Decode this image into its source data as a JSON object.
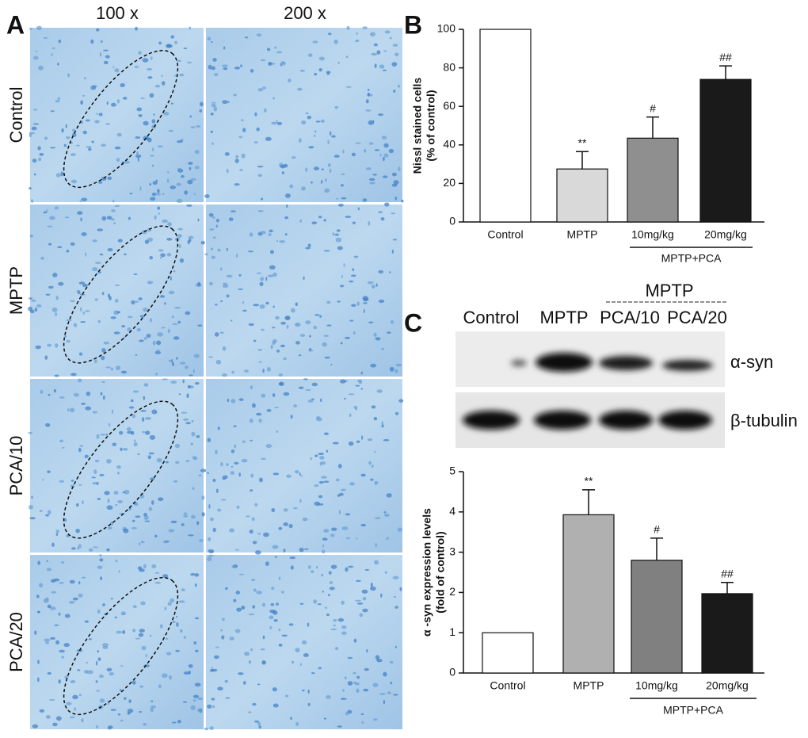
{
  "panel_a": {
    "panel_label": "A",
    "columns": [
      "100 x",
      "200 x"
    ],
    "rows": [
      "Control",
      "MPTP",
      "PCA/10",
      "PCA/20"
    ]
  },
  "blot": {
    "panel_label": "C",
    "group_label": "MPTP",
    "lanes": [
      "Control",
      "MPTP",
      "PCA/10",
      "PCA/20"
    ],
    "rows": [
      "α-syn",
      "β-tubulin"
    ]
  },
  "chart_data": [
    {
      "type": "bar",
      "panel_label": "B",
      "y_label": [
        "Nissl stained cells",
        "(% of control)"
      ],
      "categories": [
        "Control",
        "MPTP",
        "10mg/kg",
        "20mg/kg"
      ],
      "group_label": "MPTP+PCA",
      "values": [
        100,
        27.5,
        43.5,
        74
      ],
      "errors": [
        0,
        9,
        11,
        7
      ],
      "annotations": [
        null,
        "**",
        "#",
        "##"
      ],
      "colors": [
        "#ffffff",
        "#d9d9d9",
        "#8f8f8f",
        "#1a1a1a"
      ],
      "ylim": [
        0,
        100
      ],
      "yticks": [
        0,
        20,
        40,
        60,
        80,
        100
      ]
    },
    {
      "type": "bar",
      "y_label": [
        "α -syn expression levels",
        "(fold of control)"
      ],
      "categories": [
        "Control",
        "MPTP",
        "10mg/kg",
        "20mg/kg"
      ],
      "group_label": "MPTP+PCA",
      "values": [
        1,
        3.93,
        2.8,
        1.97
      ],
      "errors": [
        0,
        0.62,
        0.55,
        0.28
      ],
      "annotations": [
        null,
        "**",
        "#",
        "##"
      ],
      "colors": [
        "#ffffff",
        "#b0b0b0",
        "#808080",
        "#1a1a1a"
      ],
      "ylim": [
        0,
        5
      ],
      "yticks": [
        0,
        1,
        2,
        3,
        4,
        5
      ]
    }
  ]
}
